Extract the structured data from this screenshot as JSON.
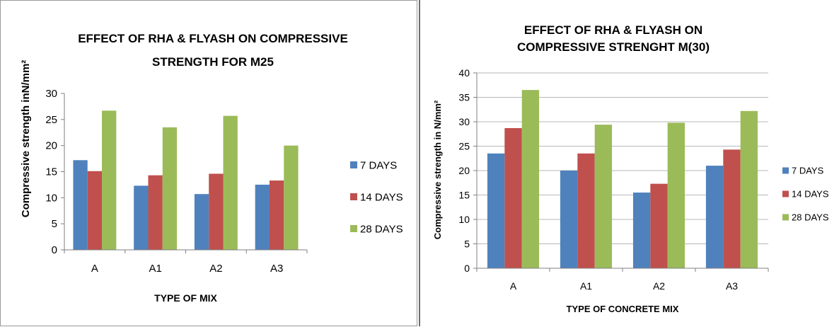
{
  "chart_data": [
    {
      "type": "bar",
      "title_lines": [
        "EFFECT OF RHA & FLYASH ON COMPRESSIVE",
        "STRENGTH FOR M25"
      ],
      "xlabel": "TYPE OF MIX",
      "ylabel": "Compressive strength inN/mm²",
      "categories": [
        "A",
        "A1",
        "A2",
        "A3"
      ],
      "ylim": [
        0,
        30
      ],
      "yticks": [
        0,
        5,
        10,
        15,
        20,
        25,
        30
      ],
      "grid": false,
      "legend": "right",
      "series": [
        {
          "name": "7 DAYS",
          "color": "#4f81bd",
          "values": [
            17.2,
            12.3,
            10.7,
            12.5
          ]
        },
        {
          "name": "14 DAYS",
          "color": "#c0504d",
          "values": [
            15.1,
            14.3,
            14.6,
            13.3
          ]
        },
        {
          "name": "28 DAYS",
          "color": "#9bbb59",
          "values": [
            26.7,
            23.5,
            25.7,
            20.0
          ]
        }
      ]
    },
    {
      "type": "bar",
      "title_lines": [
        "EFFECT OF RHA & FLYASH ON",
        "COMPRESSIVE STRENGHT M(30)"
      ],
      "xlabel": "TYPE OF CONCRETE MIX",
      "ylabel": "Compressive strength in N/mm²",
      "categories": [
        "A",
        "A1",
        "A2",
        "A3"
      ],
      "ylim": [
        0,
        40
      ],
      "yticks": [
        0,
        5,
        10,
        15,
        20,
        25,
        30,
        35,
        40
      ],
      "grid": true,
      "legend": "right",
      "series": [
        {
          "name": "7 DAYS",
          "color": "#4f81bd",
          "values": [
            23.5,
            20.0,
            15.5,
            21.0
          ]
        },
        {
          "name": "14 DAYS",
          "color": "#c0504d",
          "values": [
            28.7,
            23.5,
            17.3,
            24.3
          ]
        },
        {
          "name": "28 DAYS",
          "color": "#9bbb59",
          "values": [
            36.5,
            29.4,
            29.8,
            32.2
          ]
        }
      ]
    }
  ]
}
